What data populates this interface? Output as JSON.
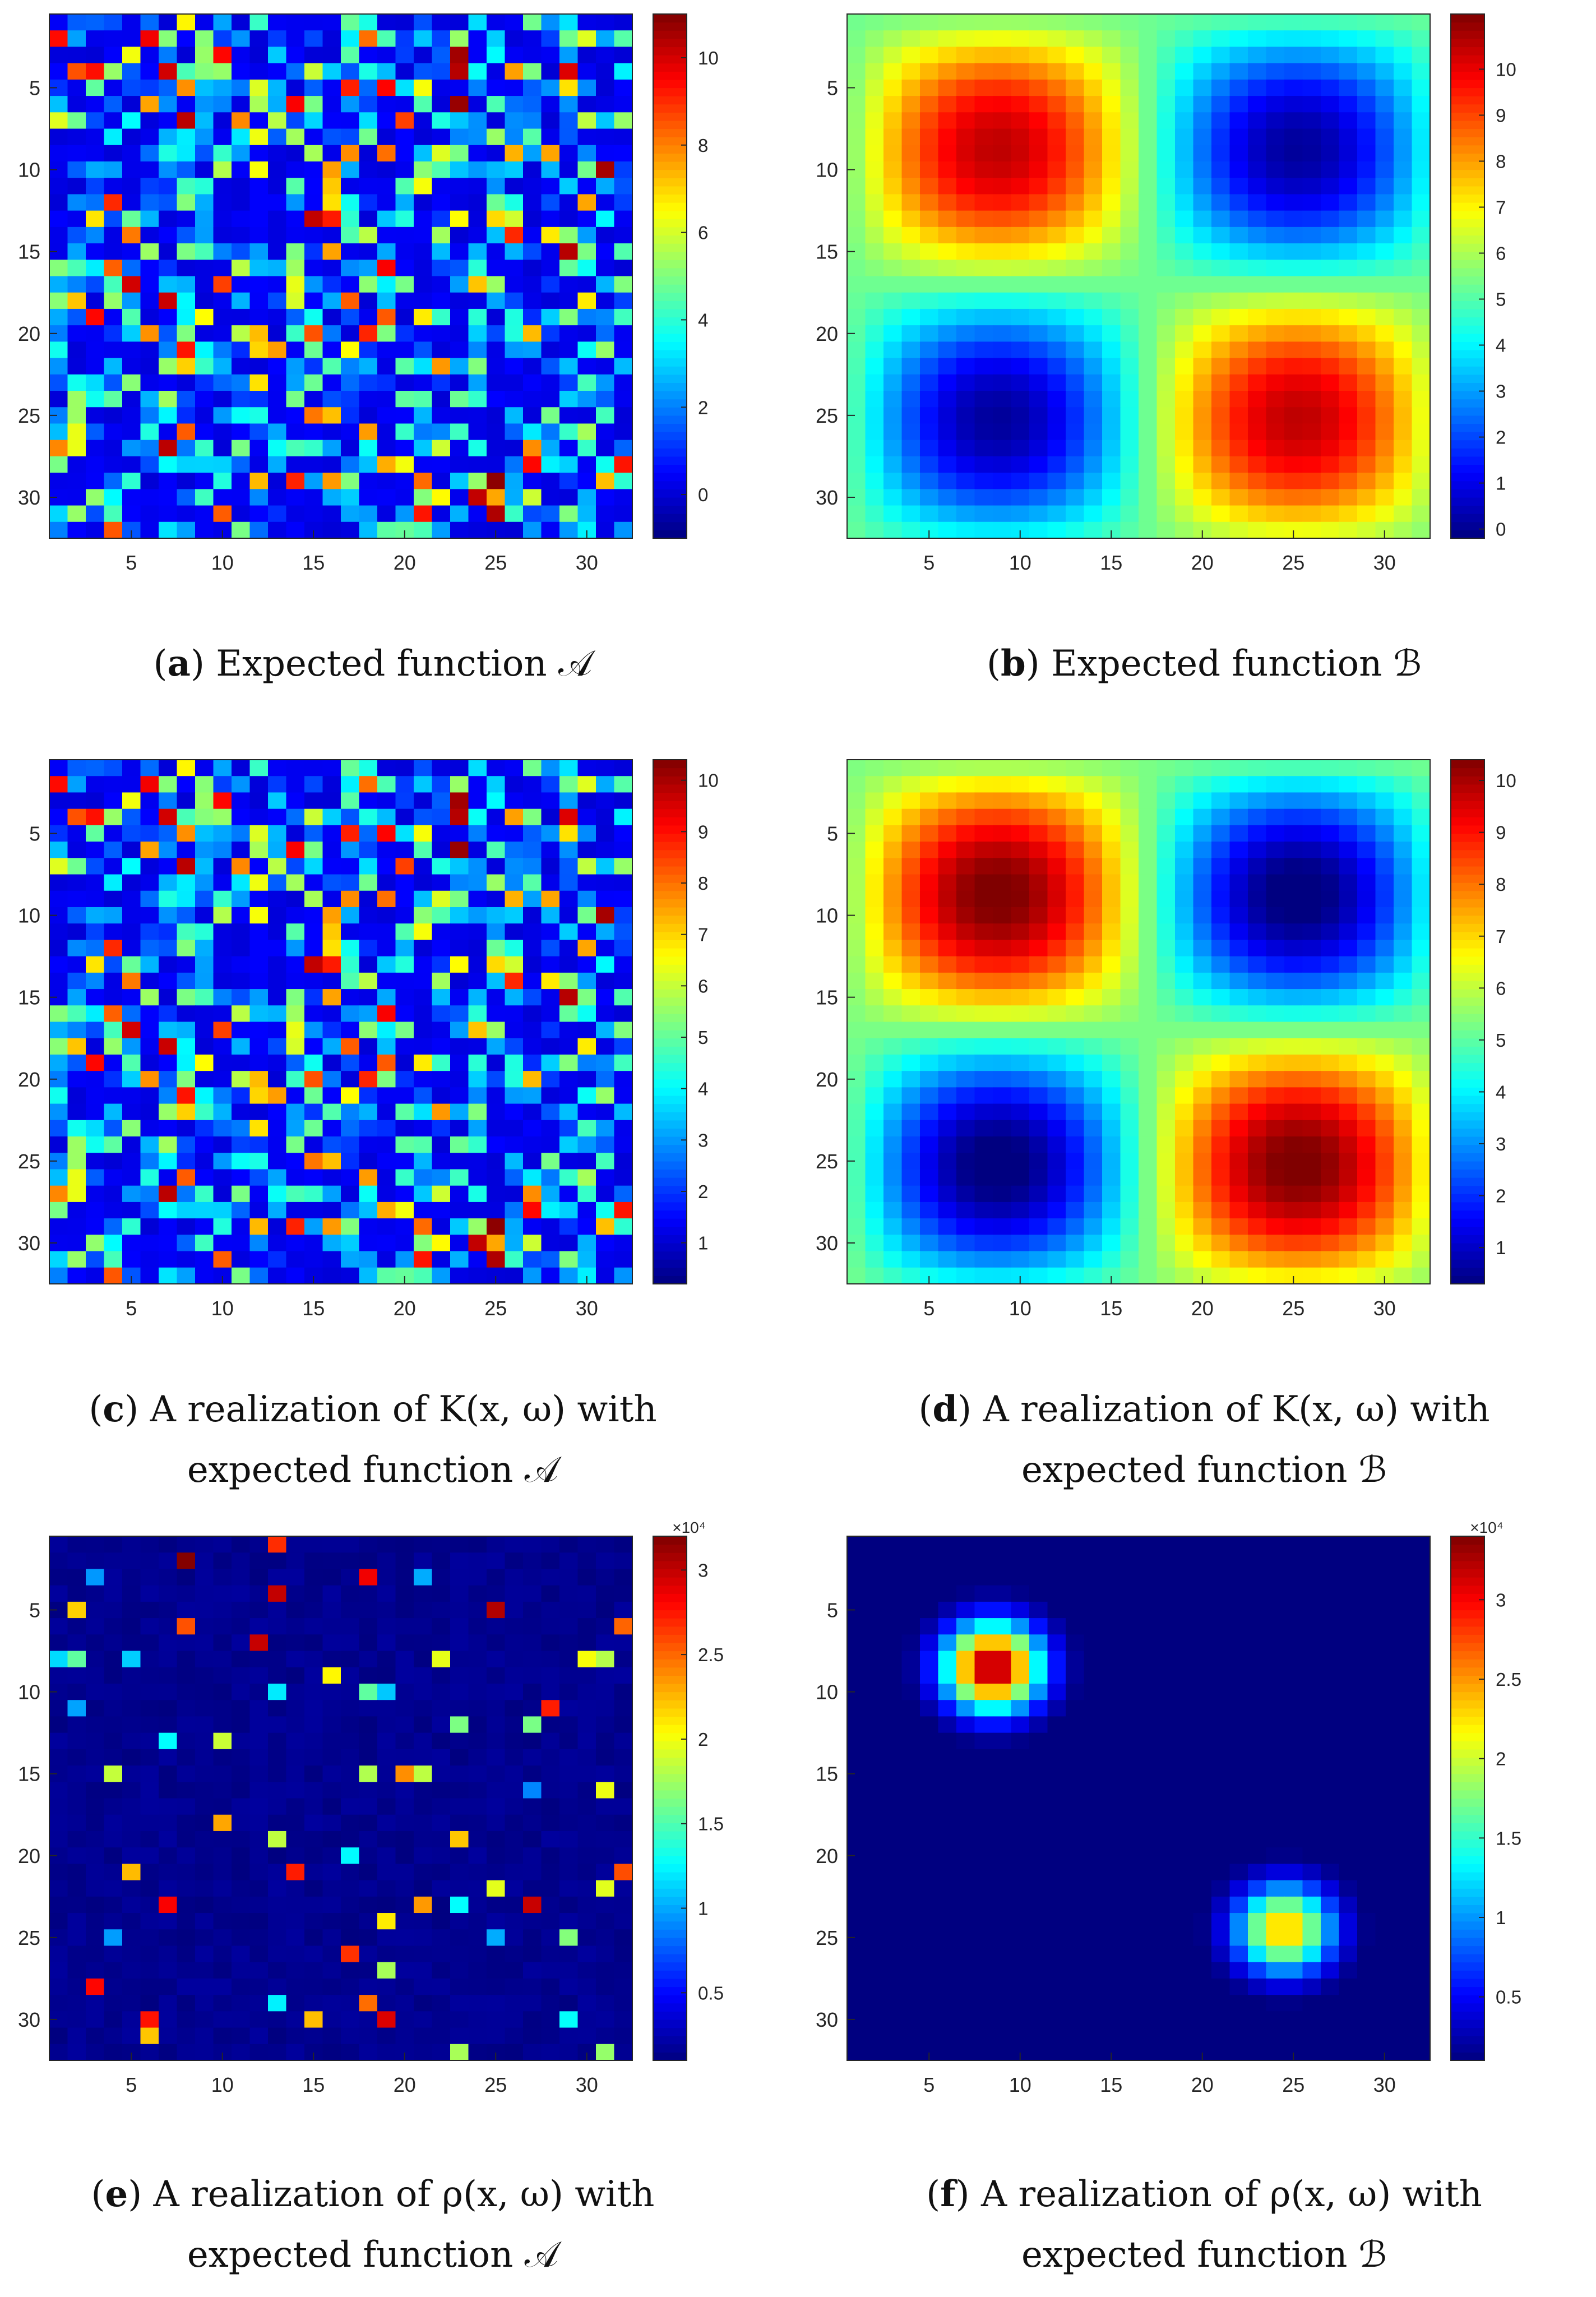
{
  "panels": [
    {
      "id": "a",
      "caption": {
        "label": "a",
        "line1": "Expected function 𝒜",
        "line2": ""
      },
      "chart_data": {
        "type": "heatmap",
        "pattern": "random",
        "seed": 17,
        "sparse": false,
        "grid_size": [
          32,
          32
        ],
        "x_ticks": [
          5,
          10,
          15,
          20,
          25,
          30
        ],
        "y_ticks": [
          5,
          10,
          15,
          20,
          25,
          30
        ],
        "color_range": [
          -1,
          11
        ],
        "colorbar_ticks": [
          0,
          2,
          4,
          6,
          8,
          10
        ],
        "colorbar_multiplier": "",
        "colormap": "jet"
      }
    },
    {
      "id": "b",
      "caption": {
        "label": "b",
        "line1": "Expected function ℬ",
        "line2": ""
      },
      "chart_data": {
        "type": "heatmap",
        "pattern": "smooth",
        "grid_size": [
          32,
          32
        ],
        "x_ticks": [
          5,
          10,
          15,
          20,
          25,
          30
        ],
        "y_ticks": [
          5,
          10,
          15,
          20,
          25,
          30
        ],
        "color_range": [
          -0.2,
          11.2
        ],
        "colorbar_ticks": [
          0,
          1,
          2,
          3,
          4,
          5,
          6,
          7,
          8,
          9,
          10
        ],
        "colorbar_multiplier": "",
        "colormap": "jet"
      }
    },
    {
      "id": "c",
      "caption": {
        "label": "c",
        "line1": "A realization of K(x, ω) with",
        "line2": "expected function 𝒜"
      },
      "chart_data": {
        "type": "heatmap",
        "pattern": "random",
        "seed": 17,
        "sparse": false,
        "grid_size": [
          32,
          32
        ],
        "x_ticks": [
          5,
          10,
          15,
          20,
          25,
          30
        ],
        "y_ticks": [
          5,
          10,
          15,
          20,
          25,
          30
        ],
        "color_range": [
          0.2,
          10.4
        ],
        "colorbar_ticks": [
          1,
          2,
          3,
          4,
          5,
          6,
          7,
          8,
          9,
          10
        ],
        "colorbar_multiplier": "",
        "colormap": "jet"
      }
    },
    {
      "id": "d",
      "caption": {
        "label": "d",
        "line1": "A realization of K(x, ω) with",
        "line2": "expected function ℬ"
      },
      "chart_data": {
        "type": "heatmap",
        "pattern": "smooth",
        "grid_size": [
          32,
          32
        ],
        "x_ticks": [
          5,
          10,
          15,
          20,
          25,
          30
        ],
        "y_ticks": [
          5,
          10,
          15,
          20,
          25,
          30
        ],
        "color_range": [
          0.3,
          10.4
        ],
        "colorbar_ticks": [
          1,
          2,
          3,
          4,
          5,
          6,
          7,
          8,
          9,
          10
        ],
        "colorbar_multiplier": "",
        "colormap": "jet"
      }
    },
    {
      "id": "e",
      "caption": {
        "label": "e",
        "line1": "A realization of ρ(x, ω) with",
        "line2": "expected function 𝒜"
      },
      "chart_data": {
        "type": "heatmap",
        "pattern": "random",
        "seed": 17,
        "sparse": true,
        "grid_size": [
          32,
          32
        ],
        "x_ticks": [
          5,
          10,
          15,
          20,
          25,
          30
        ],
        "y_ticks": [
          5,
          10,
          15,
          20,
          25,
          30
        ],
        "color_range": [
          0.1,
          3.2
        ],
        "colorbar_ticks": [
          0.5,
          1,
          1.5,
          2,
          2.5,
          3
        ],
        "colorbar_multiplier": "×10⁴",
        "colormap": "jet"
      }
    },
    {
      "id": "f",
      "caption": {
        "label": "f",
        "line1": "A realization of ρ(x, ω) with",
        "line2": "expected function ℬ"
      },
      "chart_data": {
        "type": "heatmap",
        "pattern": "peaks",
        "grid_size": [
          32,
          32
        ],
        "x_ticks": [
          5,
          10,
          15,
          20,
          25,
          30
        ],
        "y_ticks": [
          5,
          10,
          15,
          20,
          25,
          30
        ],
        "color_range": [
          0.1,
          3.4
        ],
        "colorbar_ticks": [
          0.5,
          1,
          1.5,
          2,
          2.5,
          3
        ],
        "colorbar_multiplier": "×10⁴",
        "colormap": "jet"
      }
    }
  ]
}
